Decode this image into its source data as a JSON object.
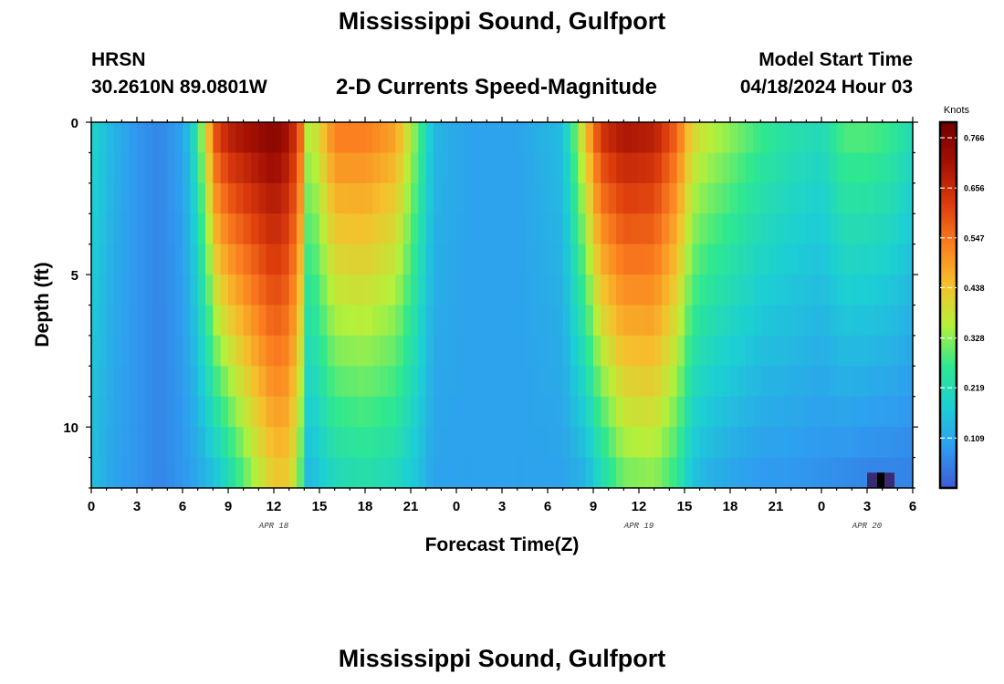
{
  "header": {
    "title": "Mississippi Sound, Gulfport",
    "station_id": "HRSN",
    "coordinates": "30.2610N  89.0801W",
    "subtitle": "2-D Currents Speed-Magnitude",
    "model_start_label": "Model Start Time",
    "model_start_value": "04/18/2024 Hour 03"
  },
  "footer": {
    "title": "Mississippi Sound, Gulfport"
  },
  "chart_data": {
    "type": "heatmap",
    "title": "2-D Currents Speed-Magnitude",
    "xlabel": "Forecast Time(Z)",
    "ylabel": "Depth (ft)",
    "x_range_hours": [
      0,
      54
    ],
    "x_tick_hours": [
      0,
      3,
      6,
      9,
      12,
      15,
      18,
      21,
      24,
      27,
      30,
      33,
      36,
      39,
      42,
      45,
      48,
      51,
      54
    ],
    "x_tick_labels": [
      "0",
      "3",
      "6",
      "9",
      "12",
      "15",
      "18",
      "21",
      "0",
      "3",
      "6",
      "9",
      "12",
      "15",
      "18",
      "21",
      "0",
      "3",
      "6"
    ],
    "date_labels": [
      {
        "label": "APR 18",
        "hour": 12
      },
      {
        "label": "APR 19",
        "hour": 36
      },
      {
        "label": "APR 20",
        "hour": 51
      }
    ],
    "y_range_ft": [
      0,
      12
    ],
    "y_tick_values": [
      0,
      5,
      10
    ],
    "y_tick_labels": [
      "0",
      "5",
      "10"
    ],
    "colorbar": {
      "units": "Knots",
      "min": 0.0,
      "max": 0.8,
      "tick_values": [
        0.766,
        0.656,
        0.547,
        0.438,
        0.328,
        0.219,
        0.109
      ],
      "tick_labels": [
        "0.766",
        "0.656",
        "0.547",
        "0.438",
        "0.328",
        "0.219",
        "0.109"
      ],
      "colors": [
        "#3d5bd8",
        "#2f9cf0",
        "#1ccfd4",
        "#2fe88e",
        "#b5f03a",
        "#f6c02c",
        "#fb7e1f",
        "#dc3b0c",
        "#a41004",
        "#730000"
      ]
    },
    "speed_keypoints": {
      "description": "Approximate current speed (knots) versus forecast hour at surface (0 ft) and bottom (12 ft)",
      "hours": [
        0,
        1.5,
        3,
        4.5,
        6,
        6.8,
        7.5,
        8.2,
        9,
        10.5,
        12,
        13,
        13.7,
        14.3,
        15,
        16,
        18,
        20,
        21.5,
        22.5,
        23.5,
        25,
        28,
        31,
        32.5,
        33.5,
        35,
        37,
        38.5,
        39.5,
        40.5,
        42,
        44,
        46,
        48,
        49.5,
        51,
        52.5,
        54
      ],
      "surface": [
        0.2,
        0.13,
        0.08,
        0.06,
        0.1,
        0.22,
        0.4,
        0.62,
        0.7,
        0.74,
        0.78,
        0.72,
        0.6,
        0.35,
        0.42,
        0.55,
        0.55,
        0.5,
        0.3,
        0.14,
        0.12,
        0.1,
        0.1,
        0.15,
        0.45,
        0.66,
        0.72,
        0.7,
        0.58,
        0.42,
        0.38,
        0.34,
        0.28,
        0.24,
        0.22,
        0.3,
        0.3,
        0.28,
        0.22
      ],
      "bottom": [
        0.15,
        0.1,
        0.08,
        0.06,
        0.08,
        0.1,
        0.12,
        0.15,
        0.2,
        0.32,
        0.42,
        0.42,
        0.3,
        0.12,
        0.16,
        0.2,
        0.22,
        0.2,
        0.15,
        0.1,
        0.1,
        0.1,
        0.1,
        0.1,
        0.12,
        0.2,
        0.3,
        0.32,
        0.25,
        0.15,
        0.12,
        0.1,
        0.08,
        0.08,
        0.07,
        0.06,
        0.05,
        0.05,
        0.05
      ]
    },
    "surface_weight_exponent": 0.9,
    "dark_bottom_marker": {
      "hour_start": 51,
      "hour_end": 52.8,
      "depth_start_ft": 11.5,
      "depth_end_ft": 12
    }
  }
}
